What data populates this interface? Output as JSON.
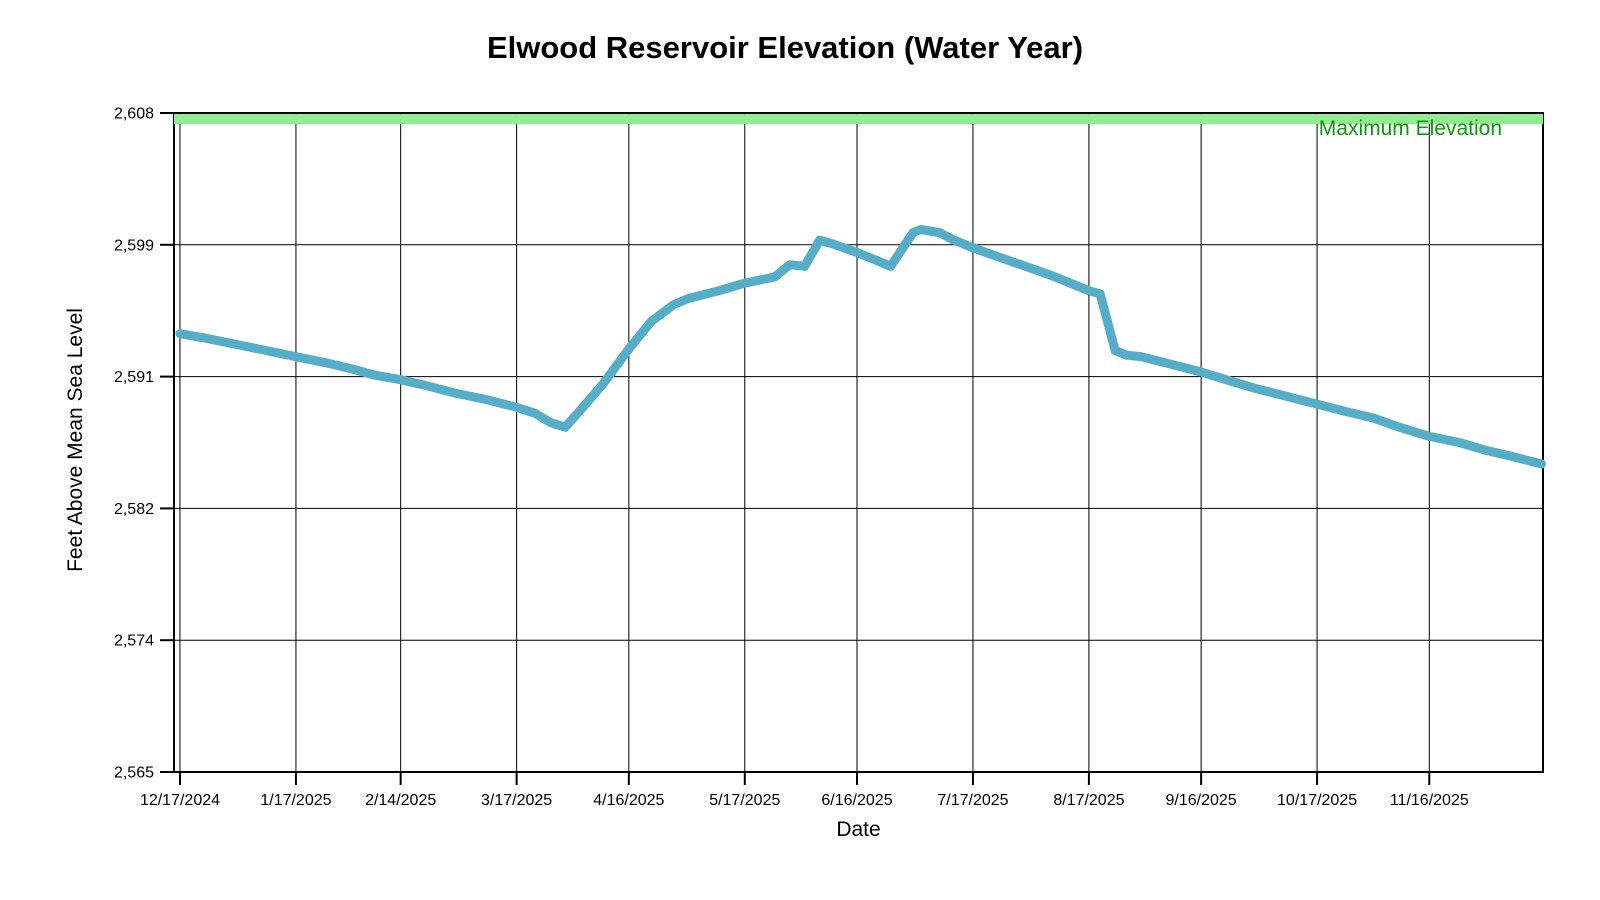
{
  "chart": {
    "title": "Elwood Reservoir Elevation (Water Year)",
    "x_axis_title": "Date",
    "y_axis_title": "Feet Above Mean Sea Level",
    "max_elevation_label": "Maximum Elevation"
  },
  "colors": {
    "series_line": "#55ADC7",
    "max_elevation_line": "#90EE90",
    "max_elevation_label": "#0B9A0B",
    "grid": "#000000",
    "text": "#000000",
    "background": "#FFFFFF"
  },
  "chart_data": {
    "type": "line",
    "title": "Elwood Reservoir Elevation (Water Year)",
    "xlabel": "Date",
    "ylabel": "Feet Above Mean Sea Level",
    "ylim": [
      2565,
      2608
    ],
    "grid": true,
    "y_tick_labels": [
      "2,565",
      "2,574",
      "2,582",
      "2,591",
      "2,599",
      "2,608"
    ],
    "x_ticks": [
      {
        "label": "12/17/2024",
        "day": 0
      },
      {
        "label": "1/17/2025",
        "day": 31
      },
      {
        "label": "2/14/2025",
        "day": 59
      },
      {
        "label": "3/17/2025",
        "day": 90
      },
      {
        "label": "4/16/2025",
        "day": 120
      },
      {
        "label": "5/17/2025",
        "day": 151
      },
      {
        "label": "6/16/2025",
        "day": 181
      },
      {
        "label": "7/17/2025",
        "day": 212
      },
      {
        "label": "8/17/2025",
        "day": 243
      },
      {
        "label": "9/16/2025",
        "day": 273
      },
      {
        "label": "10/17/2025",
        "day": 304
      },
      {
        "label": "11/16/2025",
        "day": 334
      }
    ],
    "max_elevation": {
      "label": "Maximum Elevation",
      "value_ft": 2607.6
    },
    "series": [
      {
        "id": "reservoir_elevation",
        "points": [
          {
            "date": "12/17/2024",
            "day": 0,
            "elevation_ft": 2593.6
          },
          {
            "date": "12/24/2024",
            "day": 7,
            "elevation_ft": 2593.3
          },
          {
            "date": "1/1/2025",
            "day": 15,
            "elevation_ft": 2592.9
          },
          {
            "date": "1/9/2025",
            "day": 23,
            "elevation_ft": 2592.5
          },
          {
            "date": "1/17/2025",
            "day": 31,
            "elevation_ft": 2592.1
          },
          {
            "date": "1/25/2025",
            "day": 39,
            "elevation_ft": 2591.7
          },
          {
            "date": "2/1/2025",
            "day": 46,
            "elevation_ft": 2591.3
          },
          {
            "date": "2/7/2025",
            "day": 52,
            "elevation_ft": 2590.9
          },
          {
            "date": "2/14/2025",
            "day": 59,
            "elevation_ft": 2590.6
          },
          {
            "date": "2/21/2025",
            "day": 66,
            "elevation_ft": 2590.2
          },
          {
            "date": "3/1/2025",
            "day": 74,
            "elevation_ft": 2589.7
          },
          {
            "date": "3/9/2025",
            "day": 82,
            "elevation_ft": 2589.3
          },
          {
            "date": "3/17/2025",
            "day": 90,
            "elevation_ft": 2588.8
          },
          {
            "date": "3/22/2025",
            "day": 95,
            "elevation_ft": 2588.4
          },
          {
            "date": "3/26/2025",
            "day": 99,
            "elevation_ft": 2587.8
          },
          {
            "date": "3/30/2025",
            "day": 103,
            "elevation_ft": 2587.5
          },
          {
            "date": "4/3/2025",
            "day": 107,
            "elevation_ft": 2588.6
          },
          {
            "date": "4/9/2025",
            "day": 113,
            "elevation_ft": 2590.3
          },
          {
            "date": "4/16/2025",
            "day": 120,
            "elevation_ft": 2592.6
          },
          {
            "date": "4/22/2025",
            "day": 126,
            "elevation_ft": 2594.4
          },
          {
            "date": "4/28/2025",
            "day": 132,
            "elevation_ft": 2595.5
          },
          {
            "date": "5/2/2025",
            "day": 136,
            "elevation_ft": 2595.9
          },
          {
            "date": "5/10/2025",
            "day": 144,
            "elevation_ft": 2596.4
          },
          {
            "date": "5/17/2025",
            "day": 151,
            "elevation_ft": 2596.9
          },
          {
            "date": "5/25/2025",
            "day": 159,
            "elevation_ft": 2597.3
          },
          {
            "date": "5/29/2025",
            "day": 163,
            "elevation_ft": 2598.1
          },
          {
            "date": "6/2/2025",
            "day": 167,
            "elevation_ft": 2598.0
          },
          {
            "date": "6/6/2025",
            "day": 171,
            "elevation_ft": 2599.7
          },
          {
            "date": "6/9/2025",
            "day": 174,
            "elevation_ft": 2599.5
          },
          {
            "date": "6/16/2025",
            "day": 181,
            "elevation_ft": 2598.9
          },
          {
            "date": "6/21/2025",
            "day": 186,
            "elevation_ft": 2598.4
          },
          {
            "date": "6/25/2025",
            "day": 190,
            "elevation_ft": 2598.0
          },
          {
            "date": "7/1/2025",
            "day": 196,
            "elevation_ft": 2600.2
          },
          {
            "date": "7/3/2025",
            "day": 198,
            "elevation_ft": 2600.4
          },
          {
            "date": "7/8/2025",
            "day": 203,
            "elevation_ft": 2600.2
          },
          {
            "date": "7/12/2025",
            "day": 207,
            "elevation_ft": 2599.7
          },
          {
            "date": "7/17/2025",
            "day": 212,
            "elevation_ft": 2599.2
          },
          {
            "date": "7/24/2025",
            "day": 219,
            "elevation_ft": 2598.6
          },
          {
            "date": "7/31/2025",
            "day": 226,
            "elevation_ft": 2598.0
          },
          {
            "date": "8/7/2025",
            "day": 233,
            "elevation_ft": 2597.4
          },
          {
            "date": "8/13/2025",
            "day": 239,
            "elevation_ft": 2596.8
          },
          {
            "date": "8/17/2025",
            "day": 243,
            "elevation_ft": 2596.4
          },
          {
            "date": "8/20/2025",
            "day": 246,
            "elevation_ft": 2596.2
          },
          {
            "date": "8/24/2025",
            "day": 250,
            "elevation_ft": 2592.5
          },
          {
            "date": "8/27/2025",
            "day": 253,
            "elevation_ft": 2592.2
          },
          {
            "date": "8/31/2025",
            "day": 257,
            "elevation_ft": 2592.1
          },
          {
            "date": "9/8/2025",
            "day": 265,
            "elevation_ft": 2591.6
          },
          {
            "date": "9/16/2025",
            "day": 273,
            "elevation_ft": 2591.1
          },
          {
            "date": "9/24/2025",
            "day": 281,
            "elevation_ft": 2590.5
          },
          {
            "date": "10/1/2025",
            "day": 288,
            "elevation_ft": 2590.0
          },
          {
            "date": "10/9/2025",
            "day": 296,
            "elevation_ft": 2589.5
          },
          {
            "date": "10/17/2025",
            "day": 304,
            "elevation_ft": 2589.0
          },
          {
            "date": "10/25/2025",
            "day": 312,
            "elevation_ft": 2588.5
          },
          {
            "date": "11/1/2025",
            "day": 319,
            "elevation_ft": 2588.1
          },
          {
            "date": "11/8/2025",
            "day": 326,
            "elevation_ft": 2587.5
          },
          {
            "date": "11/16/2025",
            "day": 334,
            "elevation_ft": 2586.9
          },
          {
            "date": "11/24/2025",
            "day": 342,
            "elevation_ft": 2586.5
          },
          {
            "date": "12/1/2025",
            "day": 349,
            "elevation_ft": 2586.0
          },
          {
            "date": "12/8/2025",
            "day": 356,
            "elevation_ft": 2585.6
          },
          {
            "date": "12/16/2025",
            "day": 364,
            "elevation_ft": 2585.1
          }
        ]
      }
    ]
  }
}
